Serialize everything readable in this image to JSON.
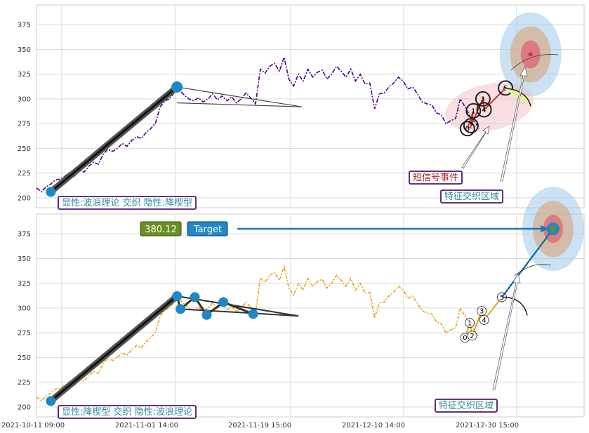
{
  "chart_data": [
    {
      "type": "line",
      "panel": "top",
      "ylim": [
        190,
        395
      ],
      "yticks": [
        200,
        225,
        250,
        275,
        300,
        325,
        350,
        375
      ],
      "series": [
        {
          "color": "#4b0082",
          "points": [
            [
              0,
              210
            ],
            [
              4,
              206
            ],
            [
              8,
              211
            ],
            [
              12,
              214
            ],
            [
              16,
              218
            ],
            [
              20,
              219
            ],
            [
              24,
              222
            ],
            [
              28,
              226
            ],
            [
              32,
              222
            ],
            [
              36,
              228
            ],
            [
              40,
              226
            ],
            [
              44,
              232
            ],
            [
              48,
              236
            ],
            [
              52,
              234
            ],
            [
              56,
              244
            ],
            [
              60,
              249
            ],
            [
              64,
              247
            ],
            [
              68,
              250
            ],
            [
              72,
              255
            ],
            [
              76,
              252
            ],
            [
              80,
              258
            ],
            [
              84,
              262
            ],
            [
              88,
              260
            ],
            [
              92,
              266
            ],
            [
              96,
              270
            ],
            [
              100,
              276
            ],
            [
              104,
              292
            ],
            [
              108,
              298
            ],
            [
              112,
              300
            ],
            [
              116,
              307
            ],
            [
              118,
              312
            ],
            [
              120,
              309
            ],
            [
              124,
              304
            ],
            [
              128,
              300
            ],
            [
              132,
              298
            ],
            [
              136,
              301
            ],
            [
              140,
              297
            ],
            [
              144,
              300
            ],
            [
              148,
              305
            ],
            [
              152,
              299
            ],
            [
              156,
              303
            ],
            [
              160,
              298
            ],
            [
              164,
              302
            ],
            [
              168,
              296
            ],
            [
              172,
              300
            ],
            [
              176,
              306
            ],
            [
              180,
              301
            ],
            [
              184,
              295
            ],
            [
              188,
              330
            ],
            [
              192,
              326
            ],
            [
              196,
              333
            ],
            [
              200,
              336
            ],
            [
              204,
              328
            ],
            [
              208,
              342
            ],
            [
              212,
              320
            ],
            [
              216,
              313
            ],
            [
              220,
              325
            ],
            [
              224,
              318
            ],
            [
              228,
              330
            ],
            [
              232,
              322
            ],
            [
              236,
              327
            ],
            [
              240,
              329
            ],
            [
              244,
              320
            ],
            [
              248,
              325
            ],
            [
              252,
              333
            ],
            [
              256,
              328
            ],
            [
              260,
              322
            ],
            [
              264,
              330
            ],
            [
              268,
              318
            ],
            [
              272,
              325
            ],
            [
              276,
              315
            ],
            [
              280,
              316
            ],
            [
              284,
              290
            ],
            [
              288,
              305
            ],
            [
              292,
              306
            ],
            [
              296,
              312
            ],
            [
              300,
              316
            ],
            [
              304,
              322
            ],
            [
              308,
              318
            ],
            [
              312,
              310
            ],
            [
              316,
              312
            ],
            [
              320,
              305
            ],
            [
              324,
              297
            ],
            [
              328,
              295
            ],
            [
              332,
              294
            ],
            [
              336,
              286
            ],
            [
              340,
              284
            ],
            [
              344,
              275
            ],
            [
              348,
              278
            ],
            [
              352,
              280
            ],
            [
              356,
              300
            ],
            [
              360,
              292
            ],
            [
              364,
              283
            ],
            [
              368,
              277
            ],
            [
              372,
              270
            ]
          ]
        }
      ],
      "overlays": {
        "pattern_line": {
          "from": [
            12,
            206
          ],
          "to": [
            118,
            312
          ]
        },
        "triangle": {
          "apex": [
            118,
            312
          ],
          "upper_end": [
            223,
            292
          ],
          "lower_start": [
            118,
            296
          ],
          "lower_end": [
            223,
            292
          ]
        },
        "wave_points": [
          {
            "label": "0",
            "x": 362,
            "y": 270
          },
          {
            "label": "1",
            "x": 367,
            "y": 288
          },
          {
            "label": "2",
            "x": 365,
            "y": 273
          },
          {
            "label": "3",
            "x": 375,
            "y": 300
          },
          {
            "label": "4",
            "x": 376,
            "y": 289
          },
          {
            "label": "5",
            "x": 394,
            "y": 311
          }
        ],
        "target": {
          "x": 415,
          "y": 345
        }
      },
      "annotations": [
        {
          "text": "显性:波浪理论 交织 隐性:降楔型",
          "color": "#2e8b9a"
        },
        {
          "text": "短信号事件",
          "color": "#b22222"
        },
        {
          "text": "特征交织区域",
          "color": "#2e8b9a"
        }
      ]
    },
    {
      "type": "line",
      "panel": "bottom",
      "ylim": [
        190,
        395
      ],
      "yticks": [
        200,
        225,
        250,
        275,
        300,
        325,
        350,
        375
      ],
      "xticks": [
        "2021-10-11 09:00",
        "2021-11-01 14:00",
        "2021-11-19 15:00",
        "2021-12-10 14:00",
        "2021-12-30 15:00"
      ],
      "series": [
        {
          "color": "#e8a317",
          "points": [
            [
              0,
              210
            ],
            [
              4,
              206
            ],
            [
              8,
              211
            ],
            [
              12,
              214
            ],
            [
              16,
              218
            ],
            [
              20,
              219
            ],
            [
              24,
              222
            ],
            [
              28,
              226
            ],
            [
              32,
              222
            ],
            [
              36,
              228
            ],
            [
              40,
              226
            ],
            [
              44,
              232
            ],
            [
              48,
              236
            ],
            [
              52,
              234
            ],
            [
              56,
              244
            ],
            [
              60,
              249
            ],
            [
              64,
              247
            ],
            [
              68,
              250
            ],
            [
              72,
              255
            ],
            [
              76,
              252
            ],
            [
              80,
              258
            ],
            [
              84,
              262
            ],
            [
              88,
              260
            ],
            [
              92,
              266
            ],
            [
              96,
              270
            ],
            [
              100,
              276
            ],
            [
              104,
              292
            ],
            [
              108,
              298
            ],
            [
              112,
              300
            ],
            [
              116,
              307
            ],
            [
              118,
              312
            ],
            [
              120,
              309
            ],
            [
              124,
              304
            ],
            [
              128,
              300
            ],
            [
              132,
              298
            ],
            [
              136,
              301
            ],
            [
              140,
              297
            ],
            [
              144,
              300
            ],
            [
              148,
              305
            ],
            [
              152,
              299
            ],
            [
              156,
              303
            ],
            [
              160,
              298
            ],
            [
              164,
              302
            ],
            [
              168,
              296
            ],
            [
              172,
              300
            ],
            [
              176,
              306
            ],
            [
              180,
              301
            ],
            [
              184,
              295
            ],
            [
              188,
              330
            ],
            [
              192,
              326
            ],
            [
              196,
              333
            ],
            [
              200,
              336
            ],
            [
              204,
              328
            ],
            [
              208,
              342
            ],
            [
              212,
              320
            ],
            [
              216,
              313
            ],
            [
              220,
              325
            ],
            [
              224,
              318
            ],
            [
              228,
              330
            ],
            [
              232,
              322
            ],
            [
              236,
              327
            ],
            [
              240,
              329
            ],
            [
              244,
              320
            ],
            [
              248,
              325
            ],
            [
              252,
              333
            ],
            [
              256,
              328
            ],
            [
              260,
              322
            ],
            [
              264,
              330
            ],
            [
              268,
              318
            ],
            [
              272,
              325
            ],
            [
              276,
              315
            ],
            [
              280,
              316
            ],
            [
              284,
              290
            ],
            [
              288,
              305
            ],
            [
              292,
              306
            ],
            [
              296,
              312
            ],
            [
              300,
              316
            ],
            [
              304,
              322
            ],
            [
              308,
              318
            ],
            [
              312,
              310
            ],
            [
              316,
              312
            ],
            [
              320,
              305
            ],
            [
              324,
              297
            ],
            [
              328,
              295
            ],
            [
              332,
              294
            ],
            [
              336,
              286
            ],
            [
              340,
              284
            ],
            [
              344,
              275
            ],
            [
              348,
              278
            ],
            [
              352,
              280
            ],
            [
              356,
              300
            ],
            [
              360,
              292
            ],
            [
              364,
              283
            ],
            [
              368,
              277
            ],
            [
              372,
              270
            ]
          ]
        }
      ],
      "overlays": {
        "pattern_line": {
          "from": [
            12,
            206
          ],
          "to": [
            118,
            312
          ]
        },
        "wedge_points": [
          [
            118,
            312
          ],
          [
            121,
            299
          ],
          [
            133,
            311
          ],
          [
            143,
            293
          ],
          [
            157,
            306
          ],
          [
            182,
            294
          ]
        ],
        "triangle_end": [
          220,
          292
        ],
        "wave_points": [
          {
            "label": "0",
            "x": 360,
            "y": 270
          },
          {
            "label": "1",
            "x": 364,
            "y": 285
          },
          {
            "label": "2",
            "x": 366,
            "y": 272
          },
          {
            "label": "3",
            "x": 374,
            "y": 297
          },
          {
            "label": "4",
            "x": 376,
            "y": 288
          },
          {
            "label": "5",
            "x": 391,
            "y": 311
          }
        ],
        "target": {
          "x": 434,
          "y": 380
        }
      },
      "annotations": [
        {
          "text": "显性:降楔型 交织 隐性:波浪理论",
          "color": "#2e8b9a"
        },
        {
          "text": "特征交织区域",
          "color": "#2e8b9a"
        }
      ],
      "price_badge": {
        "value": "380.12",
        "bg": "#6b8e23"
      },
      "target_badge": {
        "label": "Target",
        "bg": "#1e88c7"
      }
    }
  ]
}
